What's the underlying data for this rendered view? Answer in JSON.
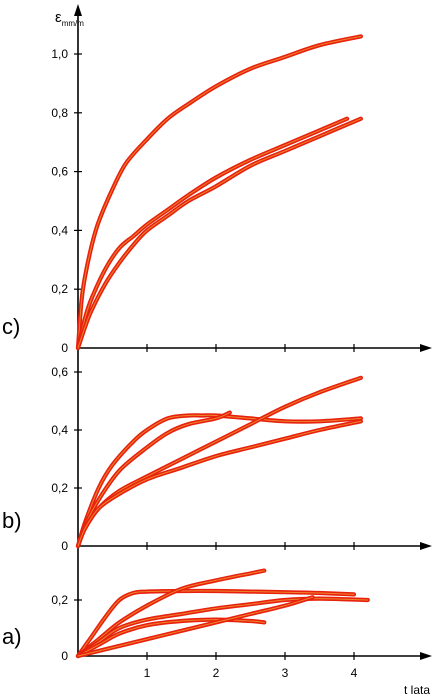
{
  "figure": {
    "x_axis_label": "t lata",
    "y_axis_label_main": "ε",
    "y_axis_label_sub": "mm/m",
    "colors": {
      "curve": "#e8210f",
      "curve_highlight": "#f2d640",
      "axis": "#000000"
    }
  },
  "chart_data": [
    {
      "type": "line",
      "panel_label": "c)",
      "xlabel": "t lata",
      "ylabel": "ε mm/m",
      "xlim": [
        0,
        4.25
      ],
      "ylim": [
        0,
        1.1
      ],
      "yticks": [
        0,
        0.2,
        0.4,
        0.6,
        0.8,
        1.0
      ],
      "ytick_labels": [
        "0",
        "0,2",
        "0,4",
        "0,6",
        "0,8",
        "1,0"
      ],
      "xticks": [
        1,
        2,
        3,
        4
      ],
      "xtick_labels": [],
      "series": [
        {
          "x": [
            0,
            0.05,
            0.1,
            0.2,
            0.3,
            0.5,
            0.7,
            1.0,
            1.3,
            1.6,
            2.0,
            2.5,
            3.0,
            3.5,
            4.1
          ],
          "y": [
            0,
            0.16,
            0.24,
            0.35,
            0.43,
            0.54,
            0.63,
            0.71,
            0.78,
            0.83,
            0.89,
            0.95,
            0.99,
            1.03,
            1.06
          ]
        },
        {
          "x": [
            0,
            0.1,
            0.2,
            0.4,
            0.6,
            0.8,
            1.0,
            1.3,
            1.6,
            2.0,
            2.5,
            3.0,
            3.5,
            3.9
          ],
          "y": [
            0,
            0.1,
            0.17,
            0.27,
            0.34,
            0.38,
            0.42,
            0.47,
            0.52,
            0.58,
            0.64,
            0.69,
            0.74,
            0.78
          ]
        },
        {
          "x": [
            0,
            0.1,
            0.2,
            0.4,
            0.6,
            0.8,
            1.0,
            1.3,
            1.6,
            2.0,
            2.5,
            3.0,
            3.5,
            4.1
          ],
          "y": [
            0,
            0.07,
            0.13,
            0.22,
            0.29,
            0.35,
            0.4,
            0.45,
            0.5,
            0.55,
            0.62,
            0.67,
            0.72,
            0.78
          ]
        }
      ]
    },
    {
      "type": "line",
      "panel_label": "b)",
      "xlim": [
        0,
        4.25
      ],
      "ylim": [
        0,
        0.65
      ],
      "yticks": [
        0,
        0.2,
        0.4,
        0.6
      ],
      "ytick_labels": [
        "0",
        "0,2",
        "0,4",
        "0,6"
      ],
      "xticks": [
        1,
        2,
        3,
        4
      ],
      "xtick_labels": [],
      "series": [
        {
          "x": [
            0,
            0.1,
            0.3,
            0.5,
            0.8,
            1.0,
            1.3,
            1.6,
            1.8,
            2.0,
            2.5,
            3.0,
            3.5,
            4.1
          ],
          "y": [
            0,
            0.08,
            0.2,
            0.28,
            0.36,
            0.4,
            0.44,
            0.45,
            0.45,
            0.45,
            0.44,
            0.43,
            0.43,
            0.44
          ]
        },
        {
          "x": [
            0,
            0.1,
            0.3,
            0.6,
            1.0,
            1.3,
            1.6,
            2.0,
            2.2
          ],
          "y": [
            0,
            0.07,
            0.16,
            0.26,
            0.34,
            0.39,
            0.42,
            0.44,
            0.46
          ]
        },
        {
          "x": [
            0,
            0.1,
            0.3,
            0.6,
            1.0,
            1.5,
            2.0,
            2.5,
            3.0,
            3.5,
            4.1
          ],
          "y": [
            0,
            0.06,
            0.13,
            0.19,
            0.24,
            0.3,
            0.36,
            0.42,
            0.48,
            0.53,
            0.58
          ]
        },
        {
          "x": [
            0,
            0.1,
            0.3,
            0.6,
            1.0,
            1.5,
            2.0,
            2.5,
            3.0,
            3.5,
            4.1
          ],
          "y": [
            0,
            0.06,
            0.13,
            0.18,
            0.23,
            0.27,
            0.31,
            0.34,
            0.37,
            0.4,
            0.43
          ]
        }
      ]
    },
    {
      "type": "line",
      "panel_label": "a)",
      "xlim": [
        0,
        4.25
      ],
      "ylim": [
        0,
        0.32
      ],
      "yticks": [
        0,
        0.2
      ],
      "ytick_labels": [
        "0",
        "0,2"
      ],
      "xticks": [
        1,
        2,
        3,
        4
      ],
      "xtick_labels": [
        "1",
        "2",
        "3",
        "4"
      ],
      "series": [
        {
          "x": [
            0,
            0.2,
            0.4,
            0.6,
            0.8,
            1.0,
            1.5,
            2.0,
            2.5,
            3.0,
            3.5,
            4.0
          ],
          "y": [
            0,
            0.07,
            0.14,
            0.2,
            0.225,
            0.23,
            0.232,
            0.232,
            0.23,
            0.228,
            0.225,
            0.22
          ]
        },
        {
          "x": [
            0,
            0.3,
            0.6,
            1.0,
            1.5,
            2.0,
            2.5,
            2.7
          ],
          "y": [
            0,
            0.06,
            0.12,
            0.18,
            0.24,
            0.27,
            0.295,
            0.305
          ]
        },
        {
          "x": [
            0,
            0.3,
            0.6,
            1.0,
            1.5,
            2.0,
            2.5,
            3.0,
            3.5,
            4.2
          ],
          "y": [
            0,
            0.05,
            0.1,
            0.13,
            0.15,
            0.17,
            0.185,
            0.2,
            0.205,
            0.2
          ]
        },
        {
          "x": [
            0,
            0.3,
            0.6,
            1.0,
            1.5,
            2.0,
            2.5,
            2.7
          ],
          "y": [
            0,
            0.04,
            0.08,
            0.11,
            0.125,
            0.13,
            0.125,
            0.12
          ]
        },
        {
          "x": [
            0,
            0.5,
            1.0,
            1.5,
            2.0,
            2.5,
            3.0,
            3.4
          ],
          "y": [
            0,
            0.03,
            0.06,
            0.09,
            0.12,
            0.15,
            0.18,
            0.21
          ]
        }
      ]
    }
  ]
}
